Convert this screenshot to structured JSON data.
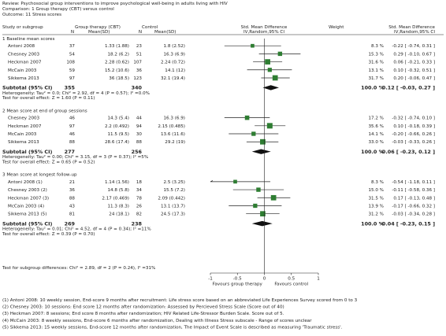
{
  "header": {
    "review": "Review:  Psychosocial group interventions to improve psychological well-being in adults living with HIV",
    "comparison": "Comparison:  1 Group therapy (CBT) versus control",
    "outcome": "Outcome:  11 Stress scores"
  },
  "columns": {
    "study": "Study or subgroup",
    "group": "Group therapy (CBT)",
    "group_n": "N",
    "group_mean": "Mean(SD)",
    "control": "Control",
    "control_n": "N",
    "control_mean": "Mean(SD)",
    "md": "Std. Mean Difference",
    "md_method": "IV,Random,95% CI",
    "weight": "Weight",
    "md2": "Std. Mean Difference",
    "md2_method": "IV,Random,95% CI"
  },
  "chart_data": {
    "type": "forest",
    "xlim": [
      -1,
      1
    ],
    "ticks": [
      "-1",
      "-0.5",
      "0",
      "0.5",
      "1"
    ],
    "tick_values": [
      -1,
      -0.5,
      0,
      0.5,
      1
    ],
    "xlabel_left": "Favours group therapy",
    "xlabel_right": "Favours control",
    "colors": {
      "marker": "#2e7d32",
      "line": "#222222"
    },
    "subgroups": [
      {
        "title": "1 Baseline mean scores",
        "studies": [
          {
            "name": "Antoni 2008",
            "n1": "37",
            "m1": "1.33 (1.88)",
            "n2": "23",
            "m2": "1.8 (2.52)",
            "est": -0.22,
            "lo": -0.74,
            "hi": 0.31,
            "weight": "8.3 %",
            "ci": "-0.22 [ -0.74, 0.31 ]",
            "w": 8.3
          },
          {
            "name": "Chesney 2003",
            "n1": "54",
            "m1": "18.2 (6.2)",
            "n2": "51",
            "m2": "16.3 (6.9)",
            "est": 0.29,
            "lo": -0.1,
            "hi": 0.67,
            "weight": "15.3 %",
            "ci": "0.29 [ -0.10, 0.67 ]",
            "w": 15.3
          },
          {
            "name": "Heckman 2007",
            "n1": "108",
            "m1": "2.28 (0.62)",
            "n2": "107",
            "m2": "2.24 (0.72)",
            "est": 0.06,
            "lo": -0.21,
            "hi": 0.33,
            "weight": "31.6 %",
            "ci": "0.06 [ -0.21, 0.33 ]",
            "w": 31.6
          },
          {
            "name": "McCain 2003",
            "n1": "59",
            "m1": "15.2 (10.6)",
            "n2": "36",
            "m2": "14.1 (12)",
            "est": 0.1,
            "lo": -0.32,
            "hi": 0.51,
            "weight": "13.1 %",
            "ci": "0.10 [ -0.32, 0.51 ]",
            "w": 13.1
          },
          {
            "name": "Sikkema 2013",
            "n1": "97",
            "m1": "36 (18.5)",
            "n2": "123",
            "m2": "32.1 (19.4)",
            "est": 0.2,
            "lo": -0.06,
            "hi": 0.47,
            "weight": "31.7 %",
            "ci": "0.20 [ -0.06, 0.47 ]",
            "w": 31.7
          }
        ],
        "total": {
          "label": "Subtotal (95% CI)",
          "n1": "355",
          "n2": "340",
          "weight": "100.0 %",
          "ci": "0.12 [ -0.03, 0.27 ]",
          "est": 0.12,
          "lo": -0.03,
          "hi": 0.27
        },
        "het": "Heterogeneity: Tau² = 0.0; Chi² = 2.92, df = 4 (P = 0.57); I² =0.0%",
        "test": "Test for overall effect: Z = 1.60 (P = 0.11)"
      },
      {
        "title": "2 Mean score at end of group sessions",
        "studies": [
          {
            "name": "Chesney 2003",
            "n1": "46",
            "m1": "14.3 (5.4)",
            "n2": "44",
            "m2": "16.3 (6.9)",
            "est": -0.32,
            "lo": -0.74,
            "hi": 0.1,
            "weight": "17.2 %",
            "ci": "-0.32 [ -0.74, 0.10 ]",
            "w": 17.2
          },
          {
            "name": "Heckman 2007",
            "n1": "97",
            "m1": "2.2 (0.492)",
            "n2": "94",
            "m2": "2.15 (0.485)",
            "est": 0.1,
            "lo": -0.18,
            "hi": 0.39,
            "weight": "35.6 %",
            "ci": "0.10 [ -0.18, 0.39 ]",
            "w": 35.6
          },
          {
            "name": "McCain 2003",
            "n1": "46",
            "m1": "11.5 (9.5)",
            "n2": "30",
            "m2": "13.6 (11.6)",
            "est": -0.2,
            "lo": -0.66,
            "hi": 0.26,
            "weight": "14.1 %",
            "ci": "-0.20 [ -0.66, 0.26 ]",
            "w": 14.1
          },
          {
            "name": "Sikkema 2013",
            "n1": "88",
            "m1": "28.6 (17.4)",
            "n2": "88",
            "m2": "29.2 (19)",
            "est": -0.03,
            "lo": -0.33,
            "hi": 0.26,
            "weight": "33.0 %",
            "ci": "-0.03 [ -0.33, 0.26 ]",
            "w": 33.0
          }
        ],
        "total": {
          "label": "Subtotal (95% CI)",
          "n1": "277",
          "n2": "256",
          "weight": "100.0 %",
          "ci": "-0.06 [ -0.23, 0.12 ]",
          "est": -0.06,
          "lo": -0.23,
          "hi": 0.12
        },
        "het": "Heterogeneity: Tau² = 0.00; Chi² = 3.15, df = 3 (P = 0.37); I² =5%",
        "test": "Test for overall effect: Z = 0.65 (P = 0.52)"
      },
      {
        "title": "3 Mean score at longest follow-up",
        "studies": [
          {
            "name": "Antoni 2008 (1)",
            "n1": "21",
            "m1": "1.14 (1.56)",
            "n2": "18",
            "m2": "2.5 (3.25)",
            "est": -0.54,
            "lo": -1.18,
            "hi": 0.11,
            "weight": "8.3 %",
            "ci": "-0.54 [ -1.18, 0.11 ]",
            "w": 8.3
          },
          {
            "name": "Chesney 2003 (2)",
            "n1": "36",
            "m1": "14.8 (5.8)",
            "n2": "34",
            "m2": "15.5 (7.2)",
            "est": -0.11,
            "lo": -0.58,
            "hi": 0.36,
            "weight": "15.0 %",
            "ci": "-0.11 [ -0.58, 0.36 ]",
            "w": 15.0
          },
          {
            "name": "Heckman 2007 (3)",
            "n1": "88",
            "m1": "2.17 (0.469)",
            "n2": "78",
            "m2": "2.09 (0.442)",
            "est": 0.17,
            "lo": -0.13,
            "hi": 0.48,
            "weight": "31.5 %",
            "ci": "0.17 [ -0.13, 0.48 ]",
            "w": 31.5
          },
          {
            "name": "McCain 2003 (4)",
            "n1": "43",
            "m1": "11.3 (8.3)",
            "n2": "26",
            "m2": "13.1 (13.7)",
            "est": -0.17,
            "lo": -0.66,
            "hi": 0.32,
            "weight": "13.9 %",
            "ci": "-0.17 [ -0.66, 0.32 ]",
            "w": 13.9
          },
          {
            "name": "Sikkema 2013 (5)",
            "n1": "81",
            "m1": "24 (18.1)",
            "n2": "82",
            "m2": "24.5 (17.3)",
            "est": -0.03,
            "lo": -0.34,
            "hi": 0.28,
            "weight": "31.2 %",
            "ci": "-0.03 [ -0.34, 0.28 ]",
            "w": 31.2
          }
        ],
        "total": {
          "label": "Subtotal (95% CI)",
          "n1": "269",
          "n2": "238",
          "weight": "100.0 %",
          "ci": "-0.04 [ -0.23, 0.15 ]",
          "est": -0.04,
          "lo": -0.23,
          "hi": 0.15
        },
        "het": "Heterogeneity: Tau² = 0.01; Chi² = 4.52, df = 4 (P = 0.34); I² =11%",
        "test": "Test for overall effect: Z = 0.39 (P = 0.70)"
      }
    ],
    "subgroup_test": "Test for subgroup differences: Chi² = 2.89, df = 2 (P = 0.24), I² =31%"
  },
  "footnotes": [
    "(1) Antoni 2008: 10 weekly session, End-score 9 months after recruitment: Life stress score based on an abbreviated Life Experiences Survey scored from 0 to 3",
    "(2) Chesney 2003: 10 sessions: End score 12 months after randomization: Assessed by Percieved Stress Scale (Score out of 40)",
    "(3) Heckman 2007: 8 sessions; End score 8 months after randomization; HIV Related Life-Stressor Burden Scale. Score out of 5.",
    "(4) McCain 2003: 8 weekly sessions, End-score 6 months after randomization, Dealing with Illness Stress subscale - Range of scores unclear",
    "(5) Sikkema 2013: 15 weekly sessions, End-score 12 months after randomization, The Impact of Event Scale is described as measuring 'Traumatic stress'."
  ]
}
